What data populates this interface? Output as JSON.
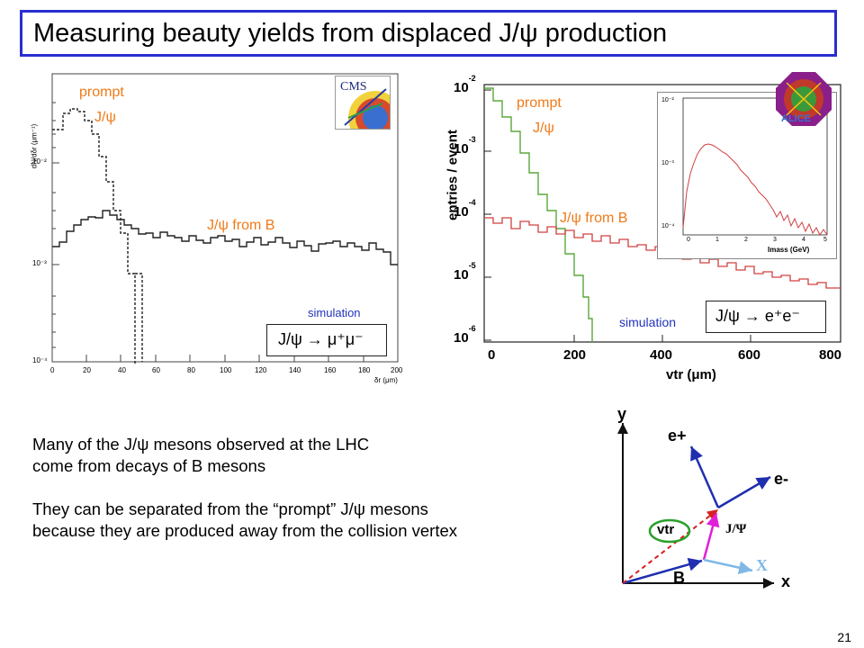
{
  "slide": {
    "title": "Measuring beauty yields from displaced J/ψ production",
    "page_number": "21"
  },
  "cms_plot": {
    "logo_text": "CMS",
    "ylabel": "dN/dδr (μm⁻¹)",
    "xlabel": "δr (μm)",
    "xticks": [
      "0",
      "20",
      "40",
      "60",
      "80",
      "100",
      "120",
      "140",
      "160",
      "180",
      "200"
    ],
    "yticks": [
      "10⁻²",
      "10⁻³",
      "10⁻⁴"
    ],
    "prompt_label_1": "prompt",
    "prompt_label_2": "J/ψ",
    "fromB_label": "J/ψ from B",
    "simulation_label": "simulation",
    "decay_label": "J/ψ → μ⁺μ⁻"
  },
  "alice_plot": {
    "logo_text": "ALICE",
    "ylabel": "entries / event",
    "xlabel": "vtr (μm)",
    "xticks": [
      "0",
      "200",
      "400",
      "600",
      "800"
    ],
    "yticks": [
      {
        "base": "10",
        "exp": "-2"
      },
      {
        "base": "10",
        "exp": "-3"
      },
      {
        "base": "10",
        "exp": "-4"
      },
      {
        "base": "10",
        "exp": "-5"
      },
      {
        "base": "10",
        "exp": "-6"
      }
    ],
    "prompt_label_1": "prompt",
    "prompt_label_2": "J/ψ",
    "fromB_label": "J/ψ from B",
    "simulation_label": "simulation",
    "decay_label": "J/ψ → e⁺e⁻",
    "inset": {
      "xlabel": "Imass (GeV)",
      "xticks": [
        "0",
        "1",
        "2",
        "3",
        "4",
        "5"
      ],
      "yticks": [
        "10⁻²",
        "10⁻³",
        "10⁻⁴"
      ]
    }
  },
  "text_block": {
    "para1_line1": "Many of the J/ψ mesons observed at the LHC",
    "para1_line2": "come from decays of B mesons",
    "para2_line1": "They can be separated from the “prompt” J/ψ mesons",
    "para2_line2": "because they are produced away from the collision vertex"
  },
  "diagram": {
    "y_axis": "y",
    "x_axis": "x",
    "e_plus": "e+",
    "e_minus": "e-",
    "jpsi": "J/Ψ",
    "vtr": "vtr",
    "b": "B",
    "x_particle": "X"
  },
  "colors": {
    "title_border": "#2a2ed0",
    "orange": "#f07a18",
    "blue_text": "#2233bb",
    "red_hist": "#d04040",
    "green_hist": "#5aa83c",
    "diagram_blue": "#1f2fb0",
    "diagram_magenta": "#e020d8",
    "diagram_red": "#d62020",
    "diagram_green": "#2ca02c",
    "diagram_lightblue": "#7fb8e6"
  }
}
